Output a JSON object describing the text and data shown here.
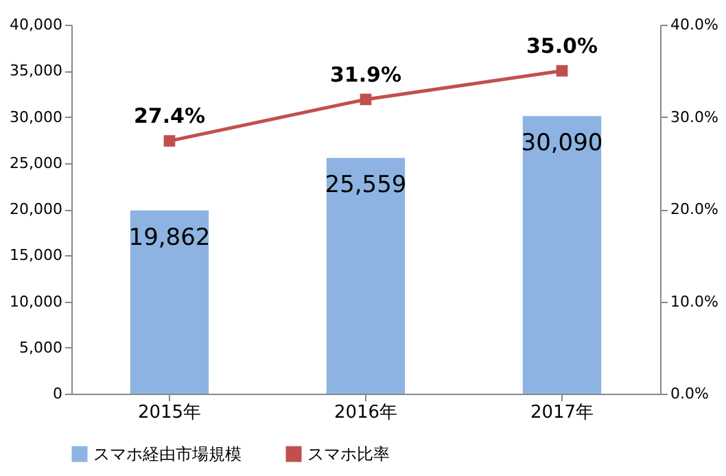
{
  "chart_data": {
    "type": "bar",
    "categories": [
      "2015年",
      "2016年",
      "2017年"
    ],
    "series": [
      {
        "name": "スマホ経由市場規模",
        "color": "#8db3e2",
        "values": [
          19862,
          25559,
          30090
        ],
        "value_labels": [
          "19,862",
          "25,559",
          "30,090"
        ]
      },
      {
        "name": "スマホ比率",
        "type": "line",
        "axis": "y2",
        "color": "#c0504d",
        "values": [
          27.4,
          31.9,
          35.0
        ],
        "value_labels": [
          "27.4%",
          "31.9%",
          "35.0%"
        ]
      }
    ],
    "ylim": [
      0,
      40000
    ],
    "yticks": [
      0,
      {
        "value": 5000,
        "label": "5,000"
      },
      {
        "value": 10000,
        "label": "10,000"
      },
      {
        "value": 15000,
        "label": "15,000"
      },
      {
        "value": 20000,
        "label": "20,000"
      },
      {
        "value": 25000,
        "label": "25,000"
      },
      {
        "value": 30000,
        "label": "30,000"
      },
      {
        "value": 35000,
        "label": "35,000"
      },
      {
        "value": 40000,
        "label": "40,000"
      }
    ],
    "y2lim": [
      0,
      40
    ],
    "y2ticks": [
      {
        "value": 0,
        "label": "0.0%"
      },
      {
        "value": 10,
        "label": "10.0%"
      },
      {
        "value": 20,
        "label": "20.0%"
      },
      {
        "value": 30,
        "label": "30.0%"
      },
      {
        "value": 40,
        "label": "40.0%"
      }
    ],
    "marker": "square",
    "legend": "bottom",
    "grid": false
  }
}
